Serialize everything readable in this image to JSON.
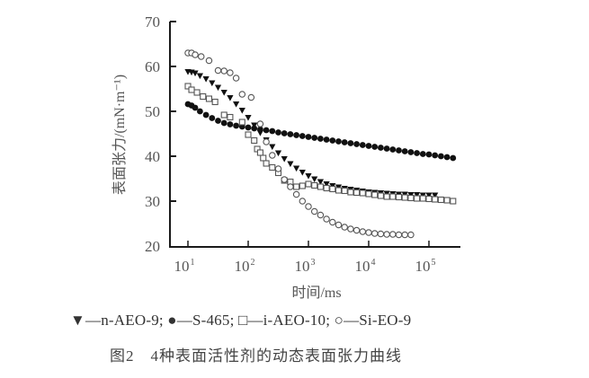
{
  "chart_data": {
    "type": "scatter",
    "title": "图2  4种表面活性剂的动态表面张力曲线",
    "figure_number": "图2",
    "caption_text": "4种表面活性剂的动态表面张力曲线",
    "xlabel": "时间/ms",
    "ylabel": "表面张力/(mN·m⁻¹)",
    "x_scale": "log",
    "xlim": [
      10,
      300000
    ],
    "ylim": [
      20,
      70
    ],
    "y_ticks": [
      20,
      30,
      40,
      50,
      60,
      70
    ],
    "x_ticks": [
      "10¹",
      "10²",
      "10³",
      "10⁴",
      "10⁵"
    ],
    "grid": false,
    "legend_position": "bottom",
    "series": [
      {
        "name": "n-AEO-9",
        "marker": "filled-triangle-down",
        "log10_x": [
          1.0,
          1.06,
          1.12,
          1.2,
          1.3,
          1.4,
          1.5,
          1.6,
          1.7,
          1.8,
          1.9,
          2.0,
          2.1,
          2.2,
          2.3,
          2.4,
          2.5,
          2.6,
          2.7,
          2.8,
          2.9,
          3.0,
          3.1,
          3.2,
          3.3,
          3.4,
          3.5,
          3.6,
          3.7,
          3.8,
          3.9,
          4.0,
          4.1,
          4.2,
          4.3,
          4.4,
          4.5,
          4.6,
          4.7,
          4.8,
          4.9,
          5.0,
          5.1
        ],
        "y": [
          58.8,
          58.7,
          58.5,
          57.9,
          57.2,
          56.3,
          55.3,
          54.2,
          53.0,
          51.6,
          50.2,
          48.6,
          46.9,
          45.2,
          43.6,
          42.1,
          40.7,
          39.4,
          38.3,
          37.3,
          36.4,
          35.6,
          34.9,
          34.3,
          33.8,
          33.4,
          33.1,
          32.8,
          32.6,
          32.4,
          32.2,
          32.0,
          31.9,
          31.8,
          31.7,
          31.6,
          31.5,
          31.5,
          31.4,
          31.4,
          31.3,
          31.3,
          31.3
        ]
      },
      {
        "name": "S-465",
        "marker": "filled-circle",
        "log10_x": [
          1.0,
          1.06,
          1.12,
          1.2,
          1.3,
          1.4,
          1.5,
          1.6,
          1.7,
          1.8,
          1.9,
          2.0,
          2.1,
          2.2,
          2.3,
          2.4,
          2.5,
          2.6,
          2.7,
          2.8,
          2.9,
          3.0,
          3.1,
          3.2,
          3.3,
          3.4,
          3.5,
          3.6,
          3.7,
          3.8,
          3.9,
          4.0,
          4.1,
          4.2,
          4.3,
          4.4,
          4.5,
          4.6,
          4.7,
          4.8,
          4.9,
          5.0,
          5.1,
          5.2,
          5.3,
          5.4
        ],
        "y": [
          51.6,
          51.3,
          50.8,
          50.0,
          49.2,
          48.5,
          47.9,
          47.4,
          47.1,
          46.8,
          46.6,
          46.4,
          46.2,
          46.0,
          45.8,
          45.6,
          45.3,
          45.1,
          44.9,
          44.7,
          44.5,
          44.3,
          44.1,
          43.9,
          43.7,
          43.5,
          43.3,
          43.1,
          42.9,
          42.7,
          42.5,
          42.3,
          42.1,
          41.9,
          41.7,
          41.5,
          41.3,
          41.1,
          40.9,
          40.7,
          40.5,
          40.4,
          40.2,
          40.0,
          39.8,
          39.6
        ]
      },
      {
        "name": "i-AEO-10",
        "marker": "open-square",
        "log10_x": [
          1.0,
          1.06,
          1.15,
          1.25,
          1.35,
          1.45,
          1.6,
          1.7,
          1.9,
          2.0,
          2.1,
          2.15,
          2.2,
          2.25,
          2.3,
          2.4,
          2.5,
          2.6,
          2.7,
          2.8,
          2.9,
          3.0,
          3.1,
          3.2,
          3.3,
          3.4,
          3.5,
          3.6,
          3.7,
          3.8,
          3.9,
          4.0,
          4.1,
          4.2,
          4.3,
          4.4,
          4.5,
          4.6,
          4.7,
          4.8,
          4.9,
          5.0,
          5.1,
          5.2,
          5.3,
          5.4
        ],
        "y": [
          55.6,
          54.8,
          54.2,
          53.3,
          52.8,
          52.1,
          49.2,
          48.7,
          47.6,
          44.8,
          43.5,
          41.6,
          40.8,
          39.6,
          38.4,
          37.5,
          36.3,
          34.6,
          34.3,
          33.2,
          33.4,
          33.8,
          33.5,
          33.2,
          32.9,
          32.7,
          32.4,
          32.3,
          32.0,
          31.9,
          31.8,
          31.6,
          31.4,
          31.2,
          31.0,
          31.0,
          30.9,
          30.8,
          30.7,
          30.6,
          30.6,
          30.5,
          30.4,
          30.3,
          30.2,
          30.0
        ]
      },
      {
        "name": "Si-EO-9",
        "marker": "open-circle",
        "log10_x": [
          1.0,
          1.06,
          1.12,
          1.22,
          1.35,
          1.5,
          1.6,
          1.7,
          1.8,
          1.9,
          2.05,
          2.2,
          2.3,
          2.4,
          2.5,
          2.6,
          2.7,
          2.8,
          2.9,
          3.0,
          3.1,
          3.2,
          3.3,
          3.4,
          3.5,
          3.6,
          3.7,
          3.8,
          3.9,
          4.0,
          4.1,
          4.2,
          4.3,
          4.4,
          4.5,
          4.6,
          4.7
        ],
        "y": [
          63.0,
          63.0,
          62.6,
          62.2,
          61.3,
          59.1,
          59.0,
          58.6,
          57.4,
          53.8,
          53.1,
          47.2,
          43.2,
          40.2,
          37.2,
          34.8,
          33.2,
          31.5,
          30.0,
          28.8,
          27.7,
          26.9,
          26.0,
          25.3,
          24.7,
          24.2,
          23.8,
          23.5,
          23.2,
          23.0,
          22.8,
          22.7,
          22.6,
          22.6,
          22.5,
          22.5,
          22.5
        ]
      }
    ]
  },
  "legend": {
    "items": [
      {
        "symbol": "▼",
        "label": "—n-AEO-9;"
      },
      {
        "symbol": "●",
        "label": "—S-465;"
      },
      {
        "symbol": "□",
        "label": "—i-AEO-10;"
      },
      {
        "symbol": "○",
        "label": "—Si-EO-9"
      }
    ]
  },
  "axes": {
    "y_ticks": [
      "20",
      "30",
      "40",
      "50",
      "60",
      "70"
    ],
    "x_ticks": [
      {
        "base": "10",
        "exp": "1"
      },
      {
        "base": "10",
        "exp": "2"
      },
      {
        "base": "10",
        "exp": "3"
      },
      {
        "base": "10",
        "exp": "4"
      },
      {
        "base": "10",
        "exp": "5"
      }
    ],
    "xlabel": "时间/ms",
    "ylabel": "表面张力/(mN·m⁻¹)"
  },
  "caption": {
    "number": "图2",
    "text": "4种表面活性剂的动态表面张力曲线"
  },
  "colors": {
    "axis": "#1a1a1a",
    "filled_marker": "#111111",
    "open_marker": "#555555",
    "text": "#555555"
  }
}
